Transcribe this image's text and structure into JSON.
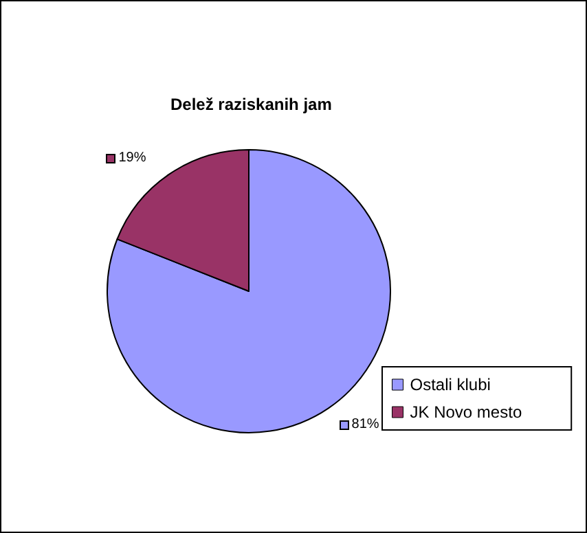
{
  "chart_data": {
    "type": "pie",
    "title": "Delež raziskanih jam",
    "categories": [
      "Ostali klubi",
      "JK Novo mesto"
    ],
    "values": [
      81,
      19
    ],
    "colors": [
      "#9999ff",
      "#993366"
    ],
    "value_labels": [
      "81%",
      "19%"
    ],
    "legend": "bottom right"
  }
}
